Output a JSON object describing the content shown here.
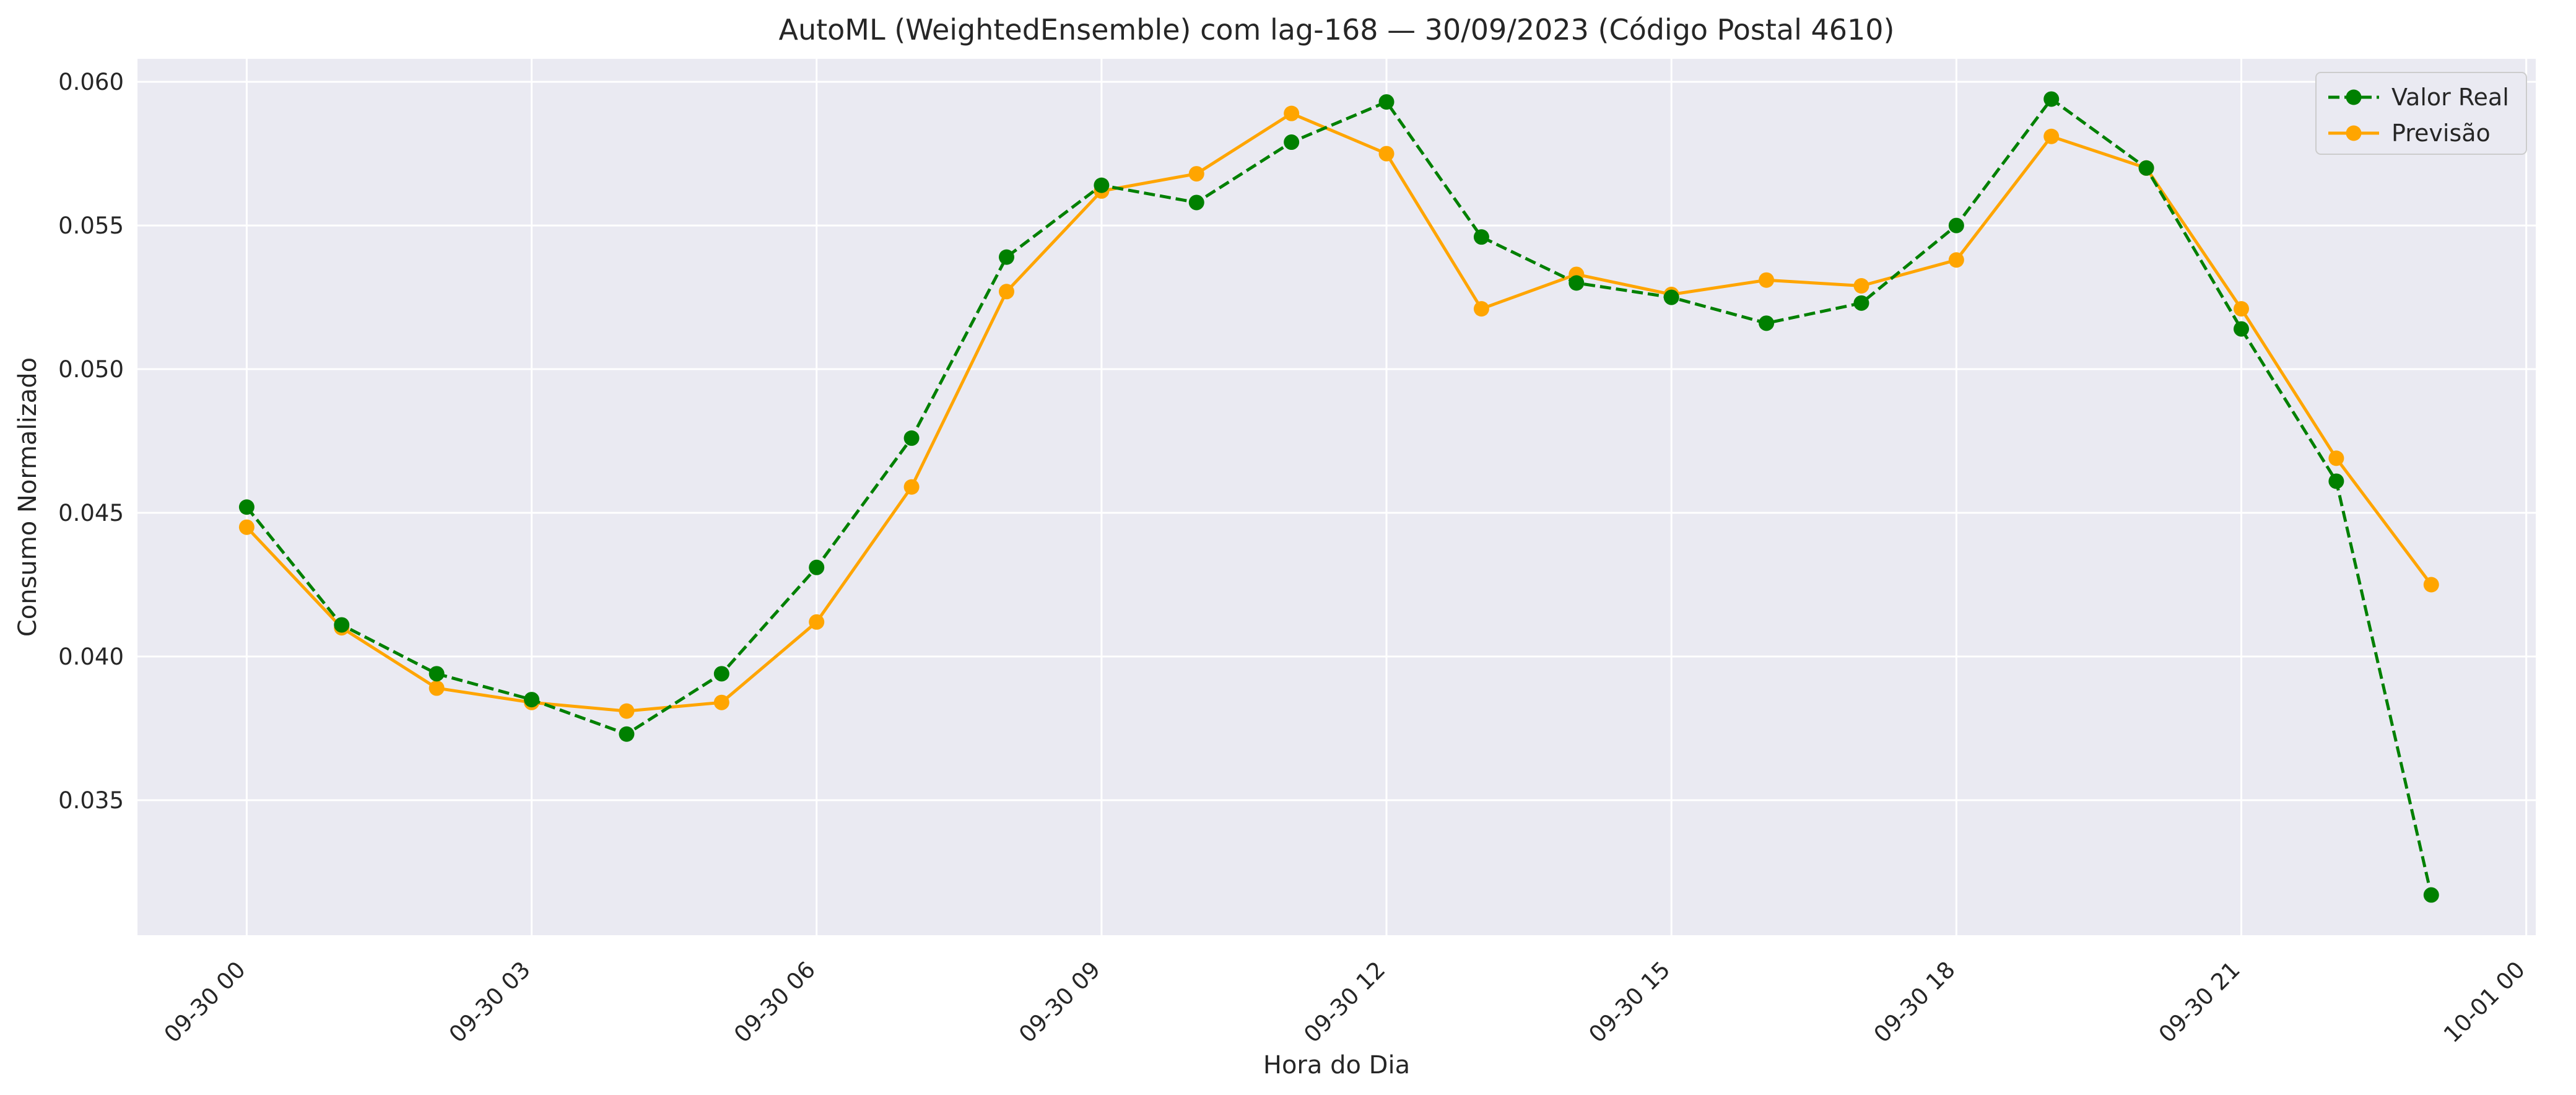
{
  "chart_data": {
    "type": "line",
    "title": "AutoML (WeightedEnsemble) com lag-168 — 30/09/2023 (Código Postal 4610)",
    "xlabel": "Hora do Dia",
    "ylabel": "Consumo Normalizado",
    "x": [
      "09-30 00",
      "09-30 01",
      "09-30 02",
      "09-30 03",
      "09-30 04",
      "09-30 05",
      "09-30 06",
      "09-30 07",
      "09-30 08",
      "09-30 09",
      "09-30 10",
      "09-30 11",
      "09-30 12",
      "09-30 13",
      "09-30 14",
      "09-30 15",
      "09-30 16",
      "09-30 17",
      "09-30 18",
      "09-30 19",
      "09-30 20",
      "09-30 21",
      "09-30 22",
      "09-30 23"
    ],
    "x_ticks": [
      "09-30 00",
      "09-30 03",
      "09-30 06",
      "09-30 09",
      "09-30 12",
      "09-30 15",
      "09-30 18",
      "09-30 21",
      "10-01 00"
    ],
    "xlim_hours": [
      -1.15,
      24.1
    ],
    "y_ticks": [
      "0.035",
      "0.040",
      "0.045",
      "0.050",
      "0.055",
      "0.060"
    ],
    "ylim": [
      0.0303,
      0.0608
    ],
    "grid": true,
    "legend_position": "top-right",
    "series": [
      {
        "name": "Valor Real",
        "color": "#008000",
        "line_style": "dashed",
        "marker": "circle",
        "values": [
          0.0452,
          0.0411,
          0.0394,
          0.0385,
          0.0373,
          0.0394,
          0.0431,
          0.0476,
          0.0539,
          0.0564,
          0.0558,
          0.0579,
          0.0593,
          0.0546,
          0.053,
          0.0525,
          0.0516,
          0.0523,
          0.055,
          0.0594,
          0.057,
          0.0514,
          0.0461,
          0.0317
        ]
      },
      {
        "name": "Previsão",
        "color": "#FFA500",
        "line_style": "solid",
        "marker": "circle",
        "values": [
          0.0445,
          0.041,
          0.0389,
          0.0384,
          0.0381,
          0.0384,
          0.0412,
          0.0459,
          0.0527,
          0.0562,
          0.0568,
          0.0589,
          0.0575,
          0.0521,
          0.0533,
          0.0526,
          0.0531,
          0.0529,
          0.0538,
          0.0581,
          0.057,
          0.0521,
          0.0469,
          0.0425
        ]
      }
    ],
    "colors": {
      "plot_background": "#EAEAF2",
      "grid": "#FFFFFF"
    }
  }
}
